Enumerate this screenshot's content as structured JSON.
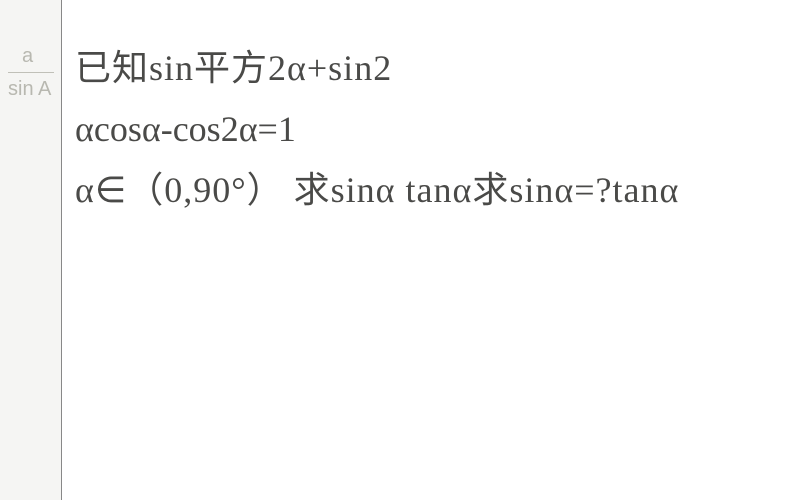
{
  "leftStrip": {
    "fracTop": "a",
    "fracBot": "sin A"
  },
  "content": {
    "line1": "已知sin平方2α+sin2",
    "line2": "αcosα-cos2α=1",
    "line3": "α∈（0,90°） 求sinα  tanα求sinα=?tanα"
  },
  "style": {
    "background": "#ffffff",
    "stripBackground": "#f5f5f3",
    "stripBorder": "#888",
    "faintColor": "#b8b8b0",
    "textColor": "#4a4a48",
    "mainFontSize": 36,
    "faintFontSize": 20
  }
}
